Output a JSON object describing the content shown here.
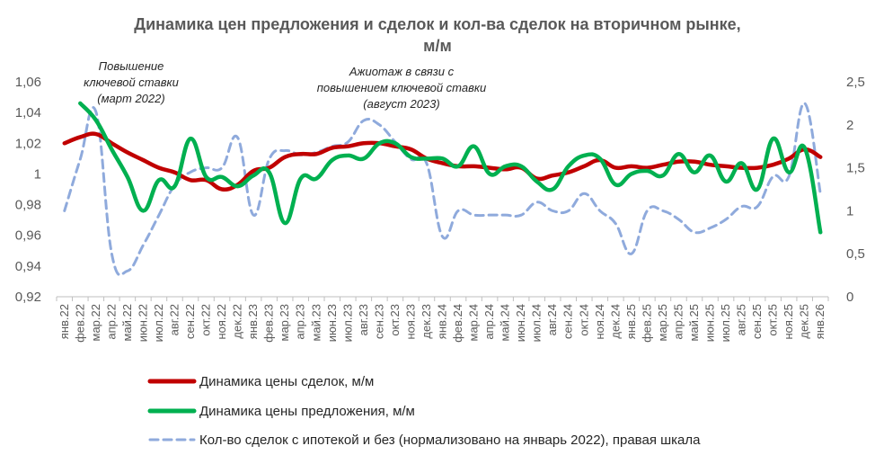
{
  "chart_data": {
    "type": "line",
    "title_line1": "Динамика цен предложения и сделок и кол-ва сделок на вторичном рынке,",
    "title_line2": "м/м",
    "x": [
      "янв.22",
      "фев.22",
      "мар.22",
      "апр.22",
      "май.22",
      "июн.22",
      "июл.22",
      "авг.22",
      "сен.22",
      "окт.22",
      "ноя.22",
      "дек.22",
      "янв.23",
      "фев.23",
      "мар.23",
      "апр.23",
      "май.23",
      "июн.23",
      "июл.23",
      "авг.23",
      "сен.23",
      "окт.23",
      "ноя.23",
      "дек.23",
      "янв.24",
      "фев.24",
      "мар.24",
      "апр.24",
      "май.24",
      "июн.24",
      "июл.24",
      "авг.24",
      "сен.24",
      "окт.24",
      "ноя.24",
      "дек.24",
      "янв.25",
      "фев.25",
      "мар.25",
      "апр.25",
      "май.25",
      "июн.25",
      "июл.25",
      "авг.25",
      "сен.25",
      "окт.25",
      "ноя.25",
      "дек.25",
      "янв.26"
    ],
    "y_left": {
      "min": 0.92,
      "max": 1.06,
      "ticks": [
        "0,92",
        "0,94",
        "0,96",
        "0,98",
        "1",
        "1,02",
        "1,04",
        "1,06"
      ]
    },
    "y_right": {
      "min": 0,
      "max": 2.5,
      "ticks": [
        "0",
        "0,5",
        "1",
        "1,5",
        "2",
        "2,5"
      ]
    },
    "grid": false,
    "legend_position": "bottom",
    "series": [
      {
        "name": "Динамика цены сделок, м/м",
        "axis": "left",
        "color": "#C00000",
        "style": "solid",
        "values": [
          1.02,
          1.024,
          1.026,
          1.02,
          1.014,
          1.009,
          1.004,
          1.001,
          0.996,
          0.996,
          0.99,
          0.993,
          1.002,
          1.004,
          1.011,
          1.013,
          1.013,
          1.017,
          1.018,
          1.02,
          1.02,
          1.018,
          1.016,
          1.01,
          1.007,
          1.005,
          1.005,
          1.004,
          1.003,
          1.004,
          0.997,
          0.999,
          1.001,
          1.005,
          1.009,
          1.004,
          1.005,
          1.004,
          1.006,
          1.008,
          1.008,
          1.006,
          1.005,
          1.004,
          1.004,
          1.006,
          1.01,
          1.016,
          1.011
        ]
      },
      {
        "name": "Динамика цены предложения, м/м",
        "axis": "left",
        "color": "#00B050",
        "style": "solid",
        "values": [
          null,
          1.046,
          1.035,
          1.016,
          0.998,
          0.976,
          0.996,
          0.992,
          1.023,
          0.998,
          0.998,
          0.992,
          0.999,
          1.001,
          0.968,
          0.997,
          0.997,
          1.009,
          1.012,
          1.01,
          1.02,
          1.02,
          1.011,
          1.01,
          1.01,
          1.005,
          1.018,
          1.0,
          1.005,
          1.005,
          0.995,
          0.99,
          1.005,
          1.012,
          1.01,
          0.993,
          1.0,
          1.002,
          0.999,
          1.013,
          1.001,
          1.012,
          0.995,
          1.007,
          0.99,
          1.023,
          1.001,
          1.017,
          0.962
        ]
      },
      {
        "name": "Кол-во сделок с ипотекой и без (нормализовано на январь 2022),  правая шкала",
        "axis": "right",
        "color": "#8FAADC",
        "style": "dashed",
        "values": [
          1.0,
          1.6,
          2.15,
          0.5,
          0.3,
          0.6,
          0.95,
          1.3,
          1.45,
          1.5,
          1.5,
          1.85,
          0.95,
          1.6,
          1.7,
          1.65,
          1.68,
          1.75,
          1.8,
          2.05,
          2.0,
          1.8,
          1.6,
          1.55,
          0.7,
          1.0,
          0.95,
          0.95,
          0.95,
          0.95,
          1.1,
          1.0,
          1.0,
          1.2,
          1.0,
          0.85,
          0.5,
          1.0,
          1.0,
          0.9,
          0.75,
          0.8,
          0.9,
          1.05,
          1.05,
          1.4,
          1.4,
          2.25,
          1.2
        ]
      }
    ],
    "annotations": [
      {
        "lines": [
          "Повышение",
          "ключевой ставки",
          "(март 2022)"
        ]
      },
      {
        "lines": [
          "Ажиотаж в связи с",
          "повышением ключевой ставки",
          "(август 2023)"
        ]
      }
    ]
  }
}
